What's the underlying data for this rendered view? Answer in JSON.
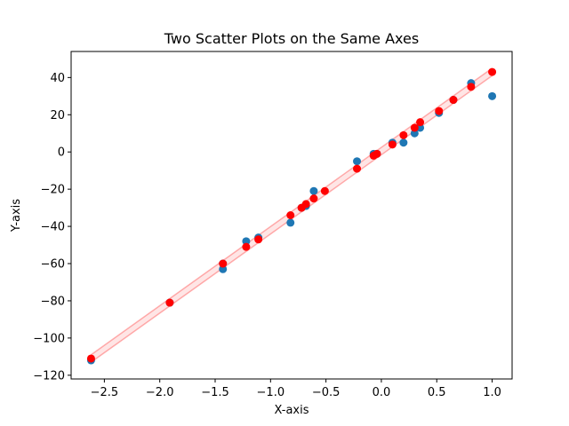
{
  "chart_data": {
    "type": "scatter",
    "title": "Two Scatter Plots on the Same Axes",
    "xlabel": "X-axis",
    "ylabel": "Y-axis",
    "xlim": [
      -2.8,
      1.18
    ],
    "ylim": [
      -122,
      54
    ],
    "x_ticks": [
      -2.5,
      -2.0,
      -1.5,
      -1.0,
      -0.5,
      0.0,
      0.5,
      1.0
    ],
    "x_tick_labels": [
      "−2.5",
      "−2.0",
      "−1.5",
      "−1.0",
      "−0.5",
      "0.0",
      "0.5",
      "1.0"
    ],
    "y_ticks": [
      -120,
      -100,
      -80,
      -60,
      -40,
      -20,
      0,
      20,
      40
    ],
    "y_tick_labels": [
      "−120",
      "−100",
      "−80",
      "−60",
      "−40",
      "−20",
      "0",
      "20",
      "40"
    ],
    "grid": false,
    "legend": "none",
    "colors": {
      "series_1": "#1f77b4",
      "series_2": "#ff0000",
      "band": "#ff0000"
    },
    "series": [
      {
        "color": "#1f77b4",
        "points": [
          [
            -2.62,
            -112
          ],
          [
            -1.91,
            -81
          ],
          [
            -1.43,
            -63
          ],
          [
            -1.43,
            -60
          ],
          [
            -1.22,
            -48
          ],
          [
            -1.11,
            -46
          ],
          [
            -0.82,
            -38
          ],
          [
            -0.72,
            -30
          ],
          [
            -0.68,
            -29
          ],
          [
            -0.61,
            -21
          ],
          [
            -0.22,
            -5
          ],
          [
            -0.07,
            -1
          ],
          [
            -0.04,
            -1
          ],
          [
            0.1,
            5
          ],
          [
            0.2,
            5
          ],
          [
            0.3,
            10
          ],
          [
            0.35,
            13
          ],
          [
            0.52,
            21
          ],
          [
            0.65,
            28
          ],
          [
            0.81,
            37
          ],
          [
            1.0,
            30
          ]
        ]
      },
      {
        "color": "#ff0000",
        "points": [
          [
            -2.62,
            -111
          ],
          [
            -1.91,
            -81
          ],
          [
            -1.43,
            -60
          ],
          [
            -1.22,
            -51
          ],
          [
            -1.11,
            -47
          ],
          [
            -0.82,
            -34
          ],
          [
            -0.72,
            -30
          ],
          [
            -0.68,
            -28
          ],
          [
            -0.61,
            -25
          ],
          [
            -0.51,
            -21
          ],
          [
            -0.22,
            -9
          ],
          [
            -0.07,
            -2
          ],
          [
            -0.04,
            -1
          ],
          [
            0.1,
            4
          ],
          [
            0.2,
            9
          ],
          [
            0.3,
            13
          ],
          [
            0.35,
            16
          ],
          [
            0.52,
            22
          ],
          [
            0.65,
            28
          ],
          [
            0.81,
            35
          ],
          [
            1.0,
            43
          ]
        ]
      }
    ],
    "band": {
      "x": [
        -2.62,
        1.0
      ],
      "upper": [
        -109,
        45
      ],
      "lower": [
        -113,
        41
      ]
    }
  }
}
